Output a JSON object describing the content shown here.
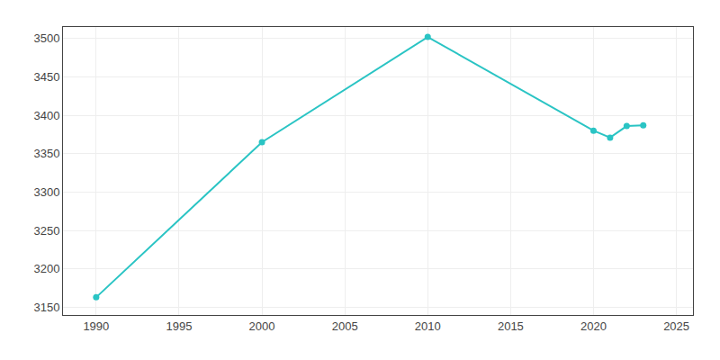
{
  "chart_data": {
    "type": "line",
    "x": [
      1990,
      2000,
      2010,
      2020,
      2021,
      2022,
      2023
    ],
    "values": [
      3163,
      3365,
      3502,
      3380,
      3371,
      3386,
      3387
    ],
    "color": "#2ac4c4",
    "marker": "circle",
    "xlim": [
      1988,
      2026
    ],
    "xticks": [
      1990,
      1995,
      2000,
      2005,
      2010,
      2015,
      2020,
      2025
    ],
    "ylim": [
      3140,
      3515
    ],
    "yticks": [
      3150,
      3200,
      3250,
      3300,
      3350,
      3400,
      3450,
      3500
    ],
    "grid": true
  }
}
